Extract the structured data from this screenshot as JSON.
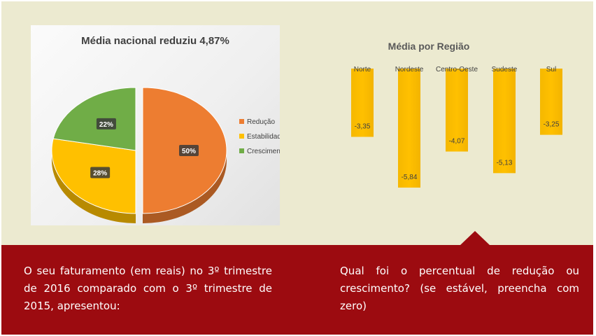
{
  "chart_data": [
    {
      "type": "pie",
      "title": "Média nacional reduziu 4,87%",
      "categories": [
        "Redução",
        "Estabilidade",
        "Crescimento"
      ],
      "values": [
        50,
        28,
        22
      ],
      "data_labels": [
        "50%",
        "28%",
        "22%"
      ],
      "colors": [
        "#ed7d31",
        "#ffc000",
        "#70ad47"
      ],
      "exploded_slice": "Redução",
      "legend_position": "right"
    },
    {
      "type": "bar",
      "title": "Média por Região",
      "categories": [
        "Norte",
        "Nordeste",
        "Centro-Oeste",
        "Sudeste",
        "Sul"
      ],
      "values": [
        -3.35,
        -5.84,
        -4.07,
        -5.13,
        -3.25
      ],
      "data_labels": [
        "-3,35",
        "-5,84",
        "-4,07",
        "-5,13",
        "-3,25"
      ],
      "color": "#ffc000",
      "ylim": [
        -5.84,
        0
      ],
      "grid": false,
      "category_labels_position": "top"
    }
  ],
  "text": {
    "left": "O seu faturamento (em reais)  no 3º trimestre  de 2016 comparado com o 3º trimestre de 2015, apresentou:",
    "right": "Qual foi o percentual de redução ou crescimento? (se estável, preencha com zero)"
  }
}
